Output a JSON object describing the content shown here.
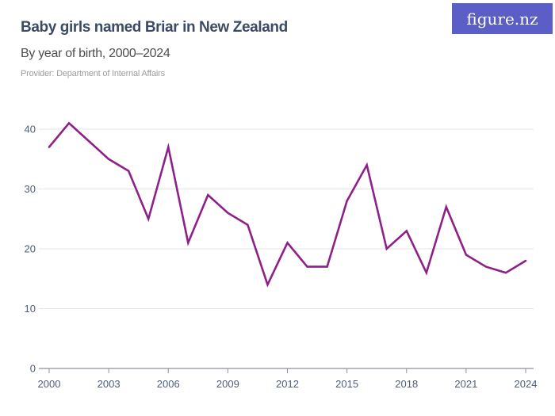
{
  "header": {
    "title": "Baby girls named Briar in New Zealand",
    "subtitle": "By year of birth, 2000–2024",
    "provider": "Provider: Department of Internal Affairs",
    "logo_text": "figure.nz"
  },
  "colors": {
    "background": "#ffffff",
    "title": "#3b4b66",
    "subtitle": "#4e4e4e",
    "provider": "#9c9c9c",
    "logo_bg": "#5a5ec6",
    "logo_text": "#ffffff",
    "line": "#8d2089",
    "grid": "#e5e5e8",
    "axis": "#8e939e",
    "tick_label": "#4e5d7d"
  },
  "chart_data": {
    "type": "line",
    "title": "Baby girls named Briar in New Zealand",
    "subtitle": "By year of birth, 2000–2024",
    "series_name": "Baby girls named Briar",
    "x": [
      2000,
      2001,
      2002,
      2003,
      2004,
      2005,
      2006,
      2007,
      2008,
      2009,
      2010,
      2011,
      2012,
      2013,
      2014,
      2015,
      2016,
      2017,
      2018,
      2019,
      2020,
      2021,
      2022,
      2023,
      2024
    ],
    "values": [
      37,
      41,
      38,
      35,
      33,
      25,
      37,
      21,
      29,
      26,
      24,
      14,
      21,
      17,
      17,
      28,
      34,
      20,
      23,
      16,
      27,
      19,
      17,
      16,
      18
    ],
    "xlabel": "",
    "ylabel": "",
    "xlim": [
      2000,
      2024
    ],
    "ylim": [
      0,
      40
    ],
    "yticks": [
      0,
      10,
      20,
      30,
      40
    ],
    "xticks": [
      2000,
      2003,
      2006,
      2009,
      2012,
      2015,
      2018,
      2021,
      2024
    ],
    "grid": "horizontal",
    "legend": "none",
    "line_color": "#8d2089"
  }
}
